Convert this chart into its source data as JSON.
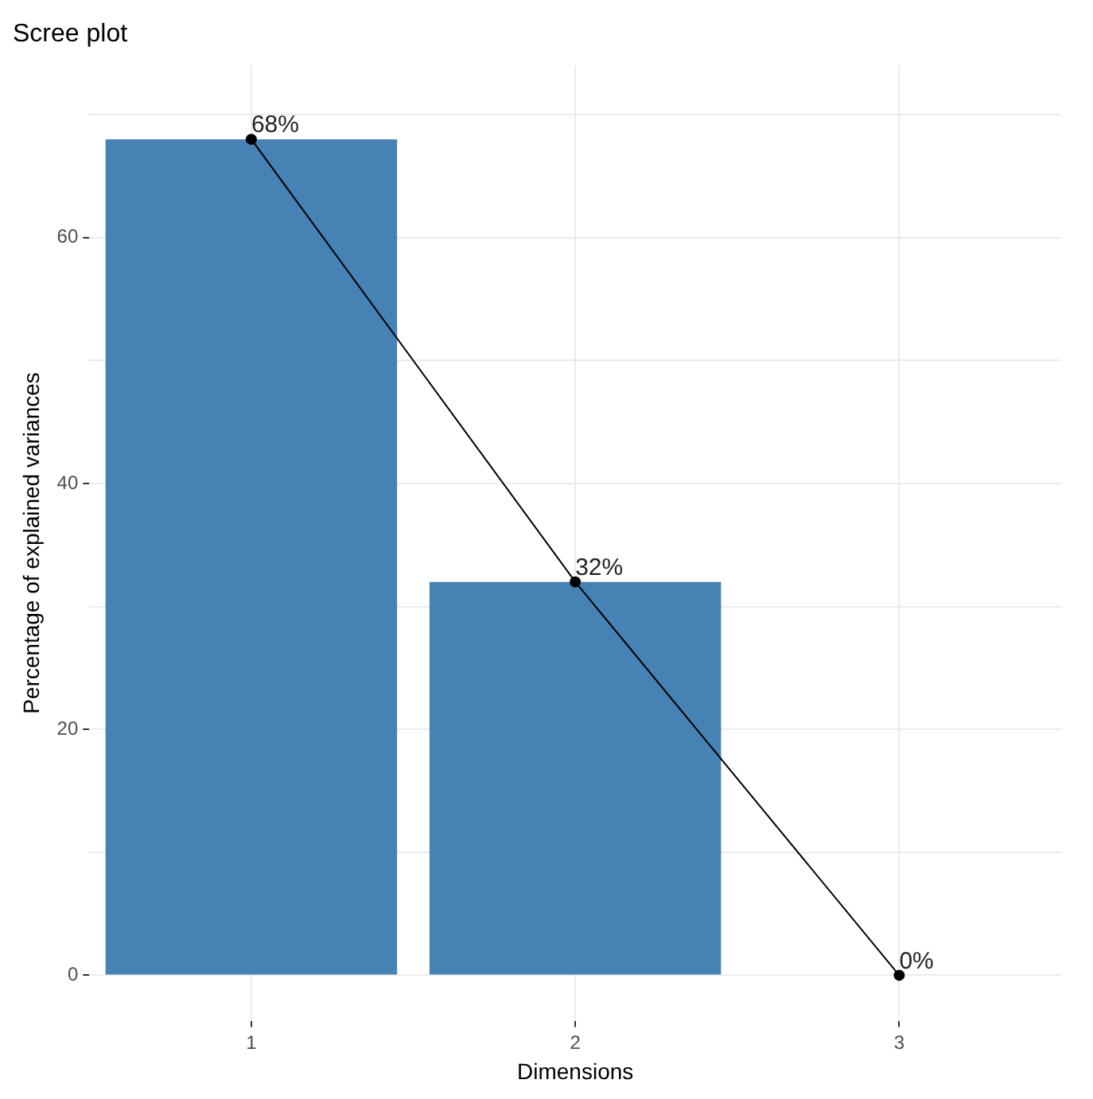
{
  "chart_data": {
    "type": "bar",
    "title": "Scree plot",
    "xlabel": "Dimensions",
    "ylabel": "Percentage of explained variances",
    "categories": [
      "1",
      "2",
      "3"
    ],
    "ylim": [
      -3.7,
      74
    ],
    "yticks": [
      0,
      {
        "value": 10,
        "label": null
      },
      20,
      {
        "value": 30,
        "label": null
      },
      40,
      {
        "value": 50,
        "label": null
      },
      60,
      {
        "value": 70,
        "label": null
      }
    ],
    "grid": true,
    "legend": false,
    "marker": "circle",
    "series": [
      {
        "color": "#4682b4",
        "values": [
          68,
          32,
          0
        ],
        "value_labels": [
          "68%",
          "32%",
          "0%"
        ]
      },
      {
        "type": "line",
        "color": "#000000",
        "values": [
          68,
          32,
          0
        ]
      }
    ]
  }
}
